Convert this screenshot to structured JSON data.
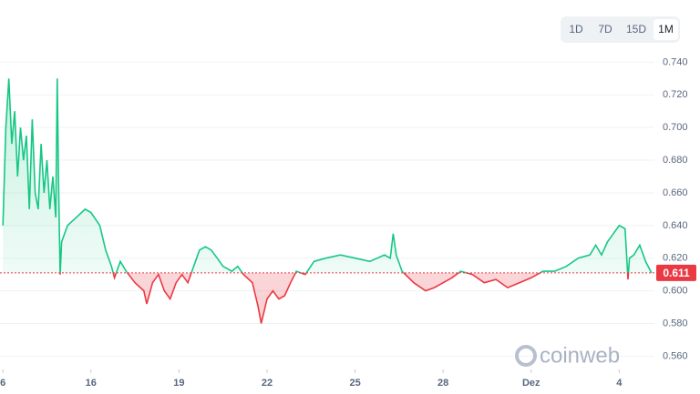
{
  "chart_data": {
    "type": "line",
    "x": [
      0,
      0.1,
      0.2,
      0.3,
      0.4,
      0.5,
      0.6,
      0.7,
      0.8,
      0.9,
      1.0,
      1.1,
      1.2,
      1.3,
      1.4,
      1.5,
      1.6,
      1.7,
      1.8,
      1.85,
      1.9,
      1.95,
      2.0,
      2.2,
      2.5,
      2.8,
      3.0,
      3.3,
      3.5,
      3.7,
      3.8,
      4.0,
      4.2,
      4.5,
      4.8,
      4.9,
      5.1,
      5.3,
      5.5,
      5.7,
      5.9,
      6.1,
      6.3,
      6.5,
      6.7,
      6.9,
      7.1,
      7.3,
      7.5,
      7.8,
      8.0,
      8.2,
      8.5,
      8.7,
      8.8,
      9.0,
      9.2,
      9.4,
      9.6,
      9.8,
      10.0,
      10.3,
      10.6,
      11.0,
      11.5,
      12.0,
      12.5,
      13.0,
      13.2,
      13.3,
      13.4,
      13.6,
      14.0,
      14.4,
      14.7,
      15.0,
      15.3,
      15.6,
      16.0,
      16.4,
      16.8,
      17.2,
      17.6,
      18.0,
      18.4,
      18.8,
      19.2,
      19.6,
      20.0,
      20.2,
      20.4,
      20.6,
      20.8,
      21.0,
      21.2,
      21.3,
      21.35,
      21.5,
      21.7,
      21.9,
      22.1
    ],
    "values": [
      0.64,
      0.7,
      0.73,
      0.69,
      0.71,
      0.67,
      0.7,
      0.68,
      0.695,
      0.65,
      0.705,
      0.66,
      0.65,
      0.69,
      0.66,
      0.68,
      0.65,
      0.67,
      0.645,
      0.73,
      0.66,
      0.61,
      0.63,
      0.64,
      0.645,
      0.65,
      0.648,
      0.64,
      0.625,
      0.615,
      0.608,
      0.618,
      0.612,
      0.605,
      0.6,
      0.592,
      0.605,
      0.61,
      0.6,
      0.595,
      0.605,
      0.61,
      0.605,
      0.615,
      0.625,
      0.627,
      0.625,
      0.62,
      0.615,
      0.612,
      0.615,
      0.61,
      0.605,
      0.59,
      0.58,
      0.595,
      0.6,
      0.595,
      0.597,
      0.605,
      0.612,
      0.61,
      0.618,
      0.62,
      0.622,
      0.62,
      0.618,
      0.622,
      0.62,
      0.635,
      0.622,
      0.612,
      0.605,
      0.6,
      0.602,
      0.605,
      0.608,
      0.612,
      0.61,
      0.605,
      0.607,
      0.602,
      0.605,
      0.608,
      0.612,
      0.612,
      0.615,
      0.62,
      0.622,
      0.628,
      0.622,
      0.63,
      0.635,
      0.64,
      0.638,
      0.607,
      0.62,
      0.622,
      0.628,
      0.618,
      0.611
    ],
    "baseline": 0.611,
    "up_color": "#16c784",
    "down_color": "#ea3943",
    "xlim": [
      -0.1,
      22.2
    ],
    "xticks": [
      {
        "value": 0,
        "label": "6"
      },
      {
        "value": 3,
        "label": "16"
      },
      {
        "value": 6,
        "label": "19"
      },
      {
        "value": 9,
        "label": "22"
      },
      {
        "value": 12,
        "label": "25"
      },
      {
        "value": 15,
        "label": "28"
      },
      {
        "value": 18,
        "label": "Dez"
      },
      {
        "value": 21,
        "label": "4"
      }
    ],
    "ylim": [
      0.553,
      0.748
    ],
    "yticks": [
      {
        "value": 0.56,
        "label": "0.560"
      },
      {
        "value": 0.58,
        "label": "0.580"
      },
      {
        "value": 0.6,
        "label": "0.600"
      },
      {
        "value": 0.62,
        "label": "0.620"
      },
      {
        "value": 0.64,
        "label": "0.640"
      },
      {
        "value": 0.66,
        "label": "0.660"
      },
      {
        "value": 0.68,
        "label": "0.680"
      },
      {
        "value": 0.7,
        "label": "0.700"
      },
      {
        "value": 0.72,
        "label": "0.720"
      },
      {
        "value": 0.74,
        "label": "0.740"
      }
    ],
    "grid": true,
    "timeframes": [
      "1D",
      "7D",
      "15D",
      "1M"
    ],
    "active_timeframe": "1M",
    "watermark": "coinweb"
  }
}
